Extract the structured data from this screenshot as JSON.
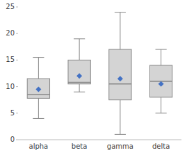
{
  "chart_data": {
    "type": "box",
    "categories": [
      "alpha",
      "beta",
      "gamma",
      "delta"
    ],
    "series": [
      {
        "type": "box",
        "color": "#d4d4d4",
        "values": [
          {
            "whislo": 4.0,
            "q1": 7.8,
            "med": 8.5,
            "q3": 11.5,
            "whishi": 15.5
          },
          {
            "whislo": 9.0,
            "q1": 10.5,
            "med": 10.8,
            "q3": 15.0,
            "whishi": 19.0
          },
          {
            "whislo": 1.0,
            "q1": 7.5,
            "med": 10.5,
            "q3": 17.0,
            "whishi": 24.0
          },
          {
            "whislo": 5.0,
            "q1": 8.0,
            "med": 11.0,
            "q3": 14.0,
            "whishi": 17.0
          }
        ]
      },
      {
        "type": "scatter",
        "marker": "diamond",
        "color": "#4472c4",
        "values": [
          9.5,
          12.0,
          11.5,
          10.5
        ]
      }
    ],
    "ylim": [
      0,
      25
    ],
    "yticks": [
      0,
      5,
      10,
      15,
      20,
      25
    ],
    "grid": false
  }
}
